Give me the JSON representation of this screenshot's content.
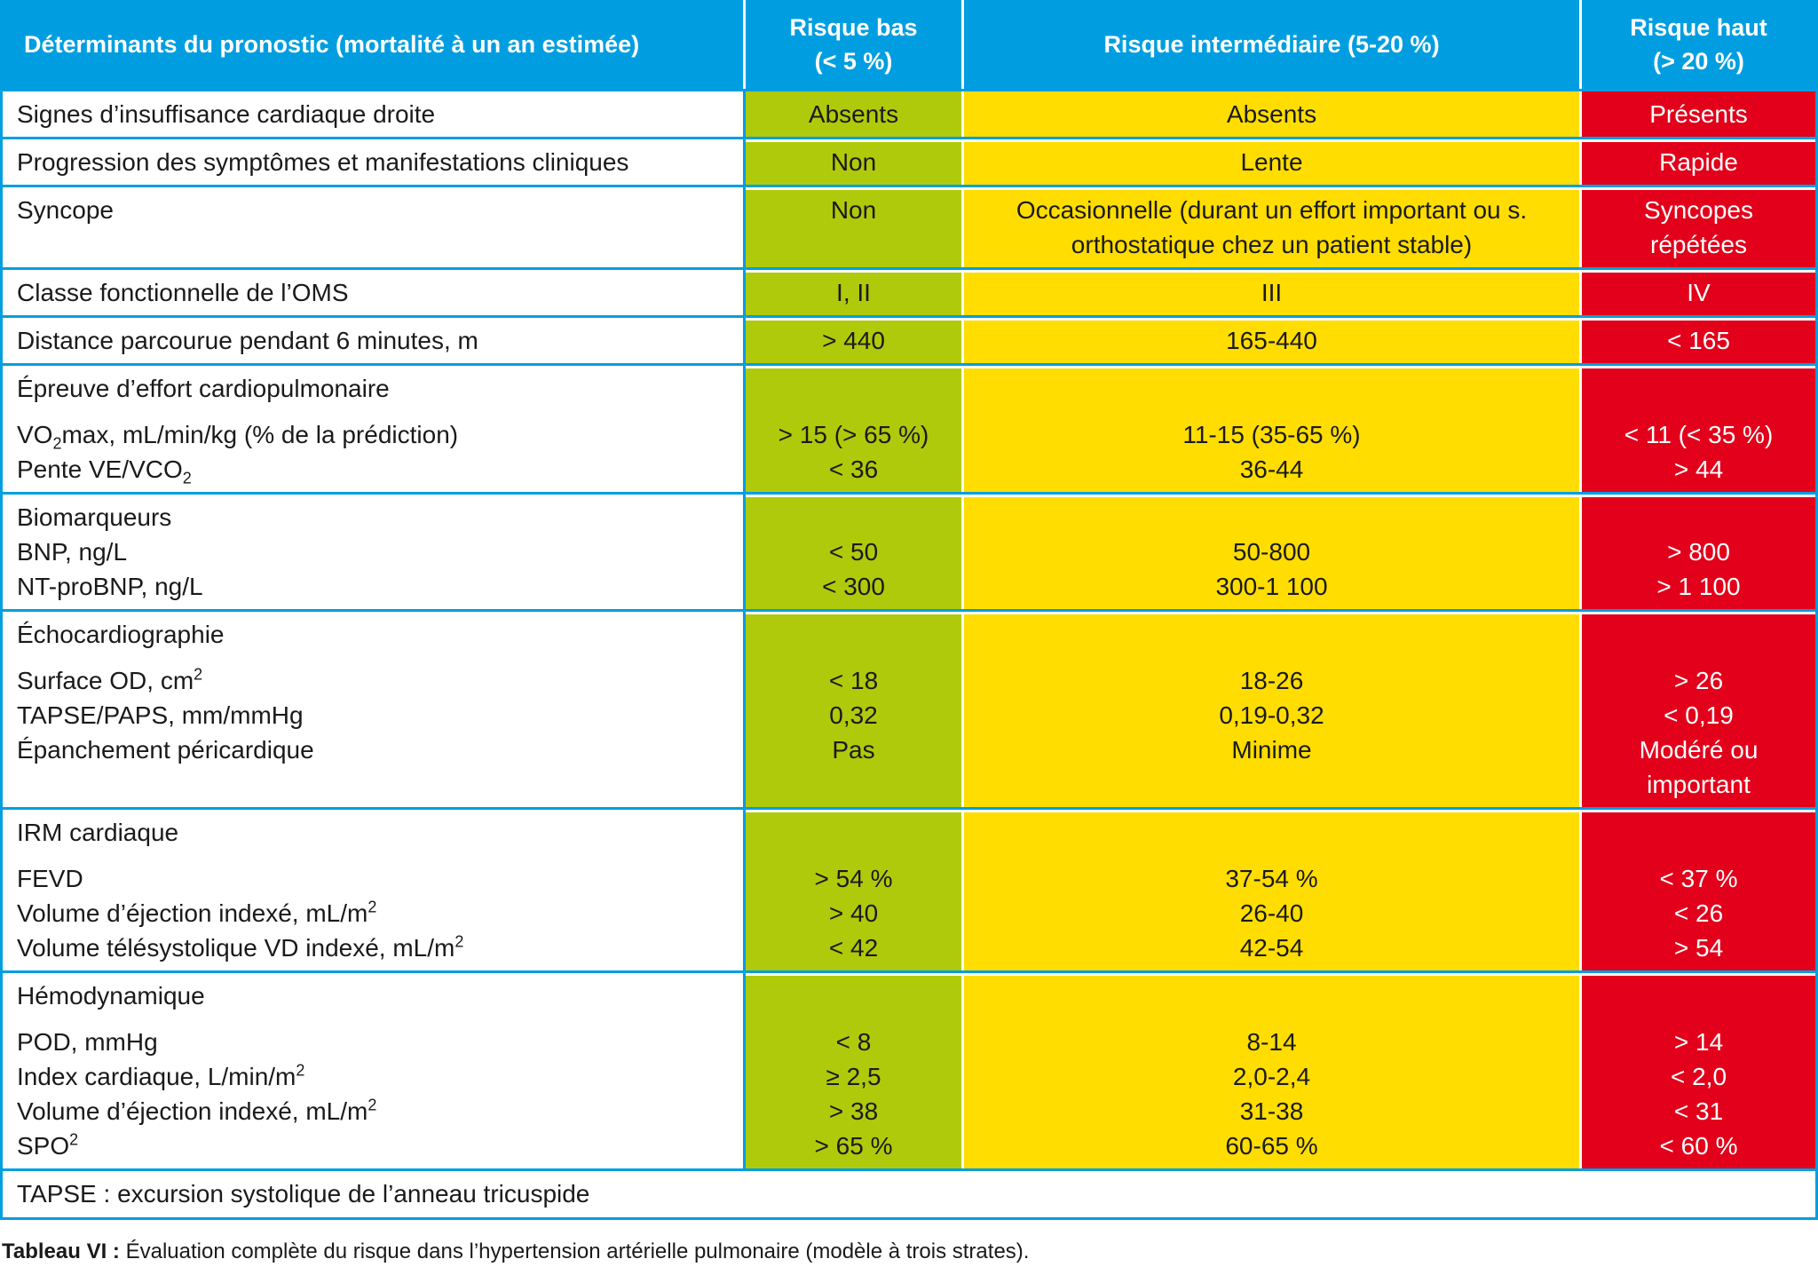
{
  "header": {
    "determinants": "Déterminants du pronostic (mortalité à un an estimée)",
    "low": "Risque bas\n(< 5 %)",
    "mid": "Risque intermédiaire (5-20 %)",
    "high": "Risque haut\n(> 20 %)"
  },
  "colors": {
    "blue": "#009ee0",
    "low": "#afca0b",
    "mid": "#ffdd00",
    "high": "#e2001a"
  },
  "rows": [
    {
      "gap": false,
      "lines": [
        {
          "label": "Signes d’insuffisance cardiaque droite",
          "low": "Absents",
          "mid": "Absents",
          "high": "Présents"
        }
      ]
    },
    {
      "gap": false,
      "lines": [
        {
          "label": "Progression des symptômes et manifestations cliniques",
          "low": "Non",
          "mid": "Lente",
          "high": "Rapide"
        }
      ]
    },
    {
      "gap": false,
      "lines": [
        {
          "label": "Syncope",
          "low": "Non",
          "mid": "Occasionnelle (durant un effort important ou s.\northostatique chez un patient stable)",
          "high": "Syncopes\nrépétées"
        }
      ]
    },
    {
      "gap": false,
      "lines": [
        {
          "label": "Classe fonctionnelle de l’OMS",
          "low": "I, II",
          "mid": "III",
          "high": "IV"
        }
      ]
    },
    {
      "gap": false,
      "lines": [
        {
          "label": "Distance parcourue pendant 6 minutes, m",
          "low": "> 440",
          "mid": "165-440",
          "high": "< 165"
        }
      ]
    },
    {
      "gap": true,
      "lines": [
        {
          "label": "Épreuve d’effort cardiopulmonaire",
          "low": "",
          "mid": "",
          "high": ""
        },
        {
          "label": "VO",
          "sub": "2",
          "label_after": "max, mL/min/kg (% de la prédiction)",
          "low": "> 15 (> 65 %)",
          "mid": "11-15 (35-65 %)",
          "high": "< 11 (< 35 %)"
        },
        {
          "label": "Pente VE/VCO",
          "sub": "2",
          "label_after": "",
          "low": "< 36",
          "mid": "36-44",
          "high": "> 44"
        }
      ]
    },
    {
      "gap": false,
      "lines": [
        {
          "label": "Biomarqueurs",
          "low": "",
          "mid": "",
          "high": ""
        },
        {
          "label": "BNP, ng/L",
          "low": "< 50",
          "mid": "50-800",
          "high": "> 800"
        },
        {
          "label": "NT-proBNP, ng/L",
          "low": "< 300",
          "mid": "300-1 100",
          "high": "> 1 100"
        }
      ]
    },
    {
      "gap": true,
      "lines": [
        {
          "label": "Échocardiographie",
          "low": "",
          "mid": "",
          "high": ""
        },
        {
          "label": "Surface OD, cm",
          "sup": "2",
          "label_after": "",
          "low": "< 18",
          "mid": "18-26",
          "high": "> 26"
        },
        {
          "label": "TAPSE/PAPS, mm/mmHg",
          "low": "0,32",
          "mid": "0,19-0,32",
          "high": "< 0,19"
        },
        {
          "label": "Épanchement péricardique",
          "low": "Pas",
          "mid": "Minime",
          "high": "Modéré ou\nimportant"
        }
      ]
    },
    {
      "gap": true,
      "lines": [
        {
          "label": "IRM cardiaque",
          "low": "",
          "mid": "",
          "high": ""
        },
        {
          "label": "FEVD",
          "low": "> 54 %",
          "mid": "37-54 %",
          "high": "< 37 %"
        },
        {
          "label": "Volume d’éjection indexé, mL/m",
          "sup": "2",
          "label_after": "",
          "low": "> 40",
          "mid": "26-40",
          "high": "< 26"
        },
        {
          "label": "Volume télésystolique VD indexé, mL/m",
          "sup": "2",
          "label_after": "",
          "low": "< 42",
          "mid": "42-54",
          "high": "> 54"
        }
      ]
    },
    {
      "gap": true,
      "lines": [
        {
          "label": "Hémodynamique",
          "low": "",
          "mid": "",
          "high": ""
        },
        {
          "label": "POD, mmHg",
          "low": "< 8",
          "mid": "8-14",
          "high": "> 14"
        },
        {
          "label": "Index cardiaque, L/min/m",
          "sup": "2",
          "label_after": "",
          "low": "≥ 2,5",
          "mid": "2,0-2,4",
          "high": "< 2,0"
        },
        {
          "label": "Volume d’éjection indexé, mL/m",
          "sup": "2",
          "label_after": "",
          "low": "> 38",
          "mid": "31-38",
          "high": "< 31"
        },
        {
          "label": "SPO",
          "sup": "2",
          "label_after": "",
          "low": "> 65 %",
          "mid": "60-65 %",
          "high": "< 60 %"
        }
      ]
    }
  ],
  "footnote": "TAPSE : excursion systolique de l’anneau tricuspide",
  "caption": {
    "label": "Tableau VI :",
    "text": " Évaluation complète du risque dans l’hypertension artérielle pulmonaire (modèle à trois strates)."
  }
}
